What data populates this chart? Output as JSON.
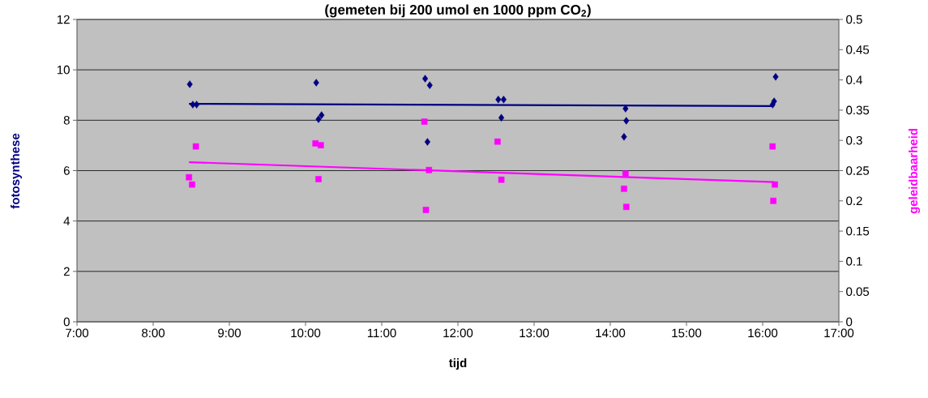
{
  "chart_data": {
    "type": "scatter",
    "title": "(gemeten bij 200 umol en 1000 ppm CO$_{2}$)",
    "xlabel": "tijd",
    "ylabel": "fotosynthese",
    "y2label": "geleidbaarheid",
    "xlim": [
      7,
      17
    ],
    "xticks": [
      {
        "value": 7,
        "label": "7:00"
      },
      {
        "value": 8,
        "label": "8:00"
      },
      {
        "value": 9,
        "label": "9:00"
      },
      {
        "value": 10,
        "label": "10:00"
      },
      {
        "value": 11,
        "label": "11:00"
      },
      {
        "value": 12,
        "label": "12:00"
      },
      {
        "value": 13,
        "label": "13:00"
      },
      {
        "value": 14,
        "label": "14:00"
      },
      {
        "value": 15,
        "label": "15:00"
      },
      {
        "value": 16,
        "label": "16:00"
      },
      {
        "value": 17,
        "label": "17:00"
      }
    ],
    "ylim": [
      0,
      12
    ],
    "yticks": [
      0,
      2,
      4,
      6,
      8,
      10,
      12
    ],
    "y2lim": [
      0,
      0.5
    ],
    "y2ticks": [
      0,
      0.05,
      0.1,
      0.15,
      0.2,
      0.25,
      0.3,
      0.35,
      0.4,
      0.45,
      0.5
    ],
    "grid": "y",
    "series": [
      {
        "color": "#000080",
        "marker": "diamond",
        "x": [
          8.48,
          8.52,
          8.57,
          10.14,
          10.17,
          10.21,
          11.57,
          11.63,
          11.6,
          12.53,
          12.6,
          12.57,
          14.2,
          14.21,
          14.18,
          16.17,
          16.15,
          16.13
        ],
        "values": [
          9.43,
          8.62,
          8.62,
          9.49,
          8.04,
          8.2,
          9.65,
          9.39,
          7.14,
          8.82,
          8.82,
          8.1,
          8.46,
          7.98,
          7.34,
          9.72,
          8.75,
          8.62
        ]
      },
      {
        "color": "#ff00ff",
        "marker": "square",
        "axis": "y2",
        "x": [
          8.56,
          8.47,
          8.51,
          10.13,
          10.2,
          10.17,
          11.56,
          11.62,
          11.58,
          12.52,
          12.57,
          14.2,
          14.18,
          14.21,
          16.13,
          16.16,
          16.14
        ],
        "values": [
          0.29,
          0.239,
          0.227,
          0.295,
          0.292,
          0.236,
          0.331,
          0.251,
          0.185,
          0.298,
          0.235,
          0.245,
          0.22,
          0.19,
          0.29,
          0.227,
          0.2
        ]
      },
      {
        "type": "line",
        "color": "#000080",
        "marker": "none",
        "line_style": "solid",
        "x": [
          8.47,
          16.15
        ],
        "values": [
          8.65,
          8.56
        ]
      },
      {
        "type": "line",
        "color": "#ff00ff",
        "marker": "none",
        "line_style": "solid",
        "axis": "y2",
        "x": [
          8.47,
          16.15
        ],
        "values": [
          0.264,
          0.231
        ]
      }
    ]
  }
}
